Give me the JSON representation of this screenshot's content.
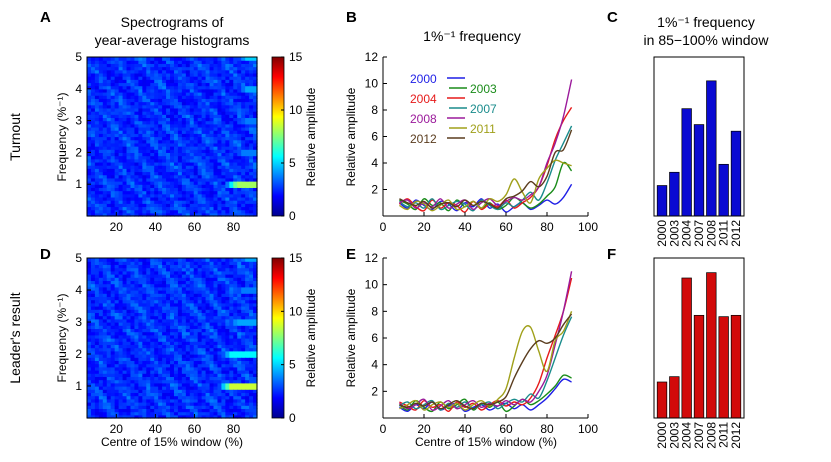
{
  "figure": {
    "panel_letters": [
      "A",
      "B",
      "C",
      "D",
      "E",
      "F"
    ],
    "row_labels": [
      "Turnout",
      "Leader's result"
    ],
    "col_a_title_lines": [
      "Spectrograms of",
      "year-average histograms"
    ],
    "col_b_title": "1%⁻¹ frequency",
    "col_c_title_lines": [
      "1%⁻¹ frequency",
      "in 85−100% window"
    ],
    "y_spec_label": "Frequency (%⁻¹)",
    "colorbar_label": "Relative amplitude",
    "y_line_label": "Relative amplitude",
    "x_label": "Centre of 15% window (%)"
  },
  "chart_data": [
    {
      "panel": "A",
      "type": "heatmap",
      "title": "Spectrograms of year-average histograms",
      "xlabel": "",
      "ylabel": "Frequency (%⁻¹)",
      "xticks": [
        20,
        40,
        60,
        80
      ],
      "yticks": [
        1,
        2,
        3,
        4,
        5
      ],
      "xlim": [
        5,
        92
      ],
      "ylim": [
        0,
        5
      ],
      "colorbar": {
        "label": "Relative amplitude",
        "ticks": [
          0,
          5,
          10,
          15
        ],
        "range": [
          0,
          15
        ],
        "colormap": "jet"
      },
      "bright_bands": [
        {
          "frequency": 1,
          "from_x": 75,
          "peak": 13
        },
        {
          "frequency": 2,
          "from_x": 78,
          "peak": 6
        },
        {
          "frequency": 3,
          "from_x": 80,
          "peak": 6
        },
        {
          "frequency": 4,
          "from_x": 80,
          "peak": 7
        },
        {
          "frequency": 5,
          "from_x": 80,
          "peak": 8
        }
      ]
    },
    {
      "panel": "B",
      "type": "line",
      "title": "1%⁻¹ frequency",
      "xlabel": "",
      "ylabel": "Relative amplitude",
      "xlim": [
        0,
        100
      ],
      "ylim": [
        0,
        12
      ],
      "xticks": [
        0,
        20,
        40,
        60,
        80,
        100
      ],
      "yticks": [
        2,
        4,
        6,
        8,
        10,
        12
      ],
      "x": [
        8,
        12,
        16,
        20,
        24,
        28,
        32,
        36,
        40,
        44,
        48,
        52,
        56,
        60,
        64,
        68,
        72,
        76,
        80,
        84,
        88,
        92
      ],
      "series": [
        {
          "name": "2000",
          "color": "#1f1fe6",
          "values": [
            1.0,
            0.6,
            1.2,
            0.8,
            0.5,
            1.1,
            0.9,
            0.4,
            1.0,
            0.7,
            1.3,
            0.6,
            0.9,
            0.3,
            0.7,
            1.0,
            0.5,
            0.8,
            1.2,
            0.9,
            1.4,
            2.4
          ]
        },
        {
          "name": "2003",
          "color": "#1a8c1a",
          "values": [
            1.2,
            0.9,
            0.5,
            1.3,
            0.8,
            1.0,
            0.4,
            1.2,
            0.7,
            1.1,
            0.6,
            1.0,
            0.5,
            0.8,
            1.4,
            1.0,
            0.6,
            0.9,
            1.5,
            2.2,
            4.0,
            3.4
          ]
        },
        {
          "name": "2004",
          "color": "#e61a1a",
          "values": [
            0.9,
            1.3,
            0.7,
            0.4,
            1.2,
            0.6,
            1.0,
            0.8,
            0.3,
            1.1,
            0.5,
            0.9,
            0.7,
            1.2,
            0.6,
            1.0,
            1.4,
            2.2,
            3.8,
            5.8,
            7.2,
            8.2
          ]
        },
        {
          "name": "2007",
          "color": "#1a8c8c",
          "values": [
            1.1,
            0.7,
            1.0,
            0.6,
            1.3,
            0.5,
            0.8,
            1.1,
            0.9,
            0.4,
            1.2,
            0.8,
            0.5,
            1.0,
            0.7,
            1.2,
            1.8,
            1.2,
            2.5,
            4.2,
            5.5,
            6.8
          ]
        },
        {
          "name": "2008",
          "color": "#9b1a9b",
          "values": [
            1.0,
            1.2,
            0.6,
            1.0,
            0.7,
            1.3,
            0.6,
            0.9,
            1.2,
            0.5,
            1.0,
            1.3,
            0.8,
            1.1,
            1.4,
            1.2,
            1.6,
            2.2,
            4.0,
            5.5,
            7.5,
            10.3
          ]
        },
        {
          "name": "2011",
          "color": "#a0a01a",
          "values": [
            0.8,
            0.5,
            1.1,
            0.9,
            0.4,
            0.8,
            1.2,
            0.5,
            0.7,
            1.1,
            0.6,
            1.3,
            1.1,
            1.6,
            2.8,
            1.8,
            1.0,
            2.8,
            3.6,
            4.2,
            4.0,
            3.8
          ]
        },
        {
          "name": "2012",
          "color": "#5a3c1e",
          "values": [
            1.3,
            1.0,
            0.8,
            1.1,
            0.6,
            0.9,
            1.0,
            0.7,
            1.2,
            0.8,
            1.1,
            0.9,
            0.6,
            1.3,
            1.5,
            1.9,
            2.6,
            2.2,
            3.0,
            4.8,
            5.0,
            6.5
          ]
        }
      ]
    },
    {
      "panel": "C",
      "type": "bar",
      "title": "1%⁻¹ frequency in 85−100% window",
      "categories": [
        "2000",
        "2003",
        "2004",
        "2007",
        "2008",
        "2011",
        "2012"
      ],
      "values": [
        2.3,
        3.3,
        8.1,
        6.9,
        10.2,
        3.9,
        6.4
      ],
      "ylim": [
        0,
        12
      ],
      "color": "#0a0ad2"
    },
    {
      "panel": "D",
      "type": "heatmap",
      "title": "",
      "xlabel": "Centre of 15% window (%)",
      "ylabel": "Frequency (%⁻¹)",
      "xticks": [
        20,
        40,
        60,
        80
      ],
      "yticks": [
        1,
        2,
        3,
        4,
        5
      ],
      "xlim": [
        5,
        92
      ],
      "ylim": [
        0,
        5
      ],
      "colorbar": {
        "label": "Relative amplitude",
        "ticks": [
          0,
          5,
          10,
          15
        ],
        "range": [
          0,
          15
        ],
        "colormap": "jet"
      },
      "bright_bands": [
        {
          "frequency": 1,
          "from_x": 72,
          "peak": 14
        },
        {
          "frequency": 2,
          "from_x": 72,
          "peak": 9
        },
        {
          "frequency": 3,
          "from_x": 75,
          "peak": 7
        },
        {
          "frequency": 4,
          "from_x": 78,
          "peak": 6
        },
        {
          "frequency": 5,
          "from_x": 80,
          "peak": 7
        }
      ]
    },
    {
      "panel": "E",
      "type": "line",
      "title": "",
      "xlabel": "Centre of 15% window (%)",
      "ylabel": "Relative amplitude",
      "xlim": [
        0,
        100
      ],
      "ylim": [
        0,
        12
      ],
      "xticks": [
        0,
        20,
        40,
        60,
        80,
        100
      ],
      "yticks": [
        2,
        4,
        6,
        8,
        10,
        12
      ],
      "x": [
        8,
        12,
        16,
        20,
        24,
        28,
        32,
        36,
        40,
        44,
        48,
        52,
        56,
        60,
        64,
        68,
        72,
        76,
        80,
        84,
        88,
        92
      ],
      "series": [
        {
          "name": "2000",
          "color": "#1f1fe6",
          "values": [
            0.8,
            0.5,
            1.0,
            0.7,
            1.2,
            0.6,
            0.9,
            1.1,
            0.5,
            0.8,
            1.0,
            0.6,
            0.9,
            1.1,
            0.7,
            1.0,
            0.6,
            1.0,
            1.5,
            2.2,
            2.9,
            2.7
          ]
        },
        {
          "name": "2003",
          "color": "#1a8c1a",
          "values": [
            1.0,
            0.6,
            1.3,
            0.8,
            0.5,
            1.2,
            0.7,
            1.0,
            1.4,
            0.6,
            1.1,
            0.8,
            1.2,
            0.5,
            0.9,
            1.4,
            1.0,
            1.3,
            1.8,
            2.4,
            3.2,
            3.0
          ]
        },
        {
          "name": "2004",
          "color": "#e61a1a",
          "values": [
            1.2,
            0.9,
            0.6,
            1.3,
            0.8,
            1.0,
            0.5,
            1.2,
            0.8,
            1.1,
            0.6,
            1.0,
            1.3,
            0.9,
            1.2,
            1.0,
            1.5,
            2.6,
            4.5,
            6.2,
            8.0,
            10.5
          ]
        },
        {
          "name": "2007",
          "color": "#1a8c8c",
          "values": [
            0.9,
            1.2,
            0.7,
            1.0,
            1.3,
            0.6,
            1.1,
            0.8,
            1.2,
            0.7,
            1.0,
            1.2,
            0.7,
            1.1,
            1.4,
            1.2,
            1.8,
            1.5,
            2.8,
            4.5,
            6.2,
            7.6
          ]
        },
        {
          "name": "2008",
          "color": "#9b1a9b",
          "values": [
            1.1,
            0.7,
            1.0,
            1.4,
            0.6,
            0.9,
            1.3,
            0.7,
            1.0,
            1.3,
            0.8,
            1.1,
            0.9,
            1.3,
            1.0,
            1.4,
            1.2,
            2.0,
            3.2,
            5.5,
            8.0,
            11.0
          ]
        },
        {
          "name": "2011",
          "color": "#a0a01a",
          "values": [
            0.7,
            1.0,
            1.3,
            0.6,
            1.0,
            1.2,
            0.8,
            1.1,
            0.6,
            1.0,
            1.3,
            0.9,
            1.4,
            2.2,
            4.5,
            6.5,
            6.8,
            5.0,
            3.5,
            5.8,
            6.5,
            8.0
          ]
        },
        {
          "name": "2012",
          "color": "#5a3c1e",
          "values": [
            1.0,
            0.8,
            1.1,
            0.9,
            1.2,
            0.7,
            1.0,
            1.3,
            0.9,
            0.7,
            1.1,
            1.0,
            1.2,
            1.6,
            3.0,
            4.2,
            5.2,
            5.8,
            5.6,
            6.0,
            7.0,
            7.8
          ]
        }
      ]
    },
    {
      "panel": "F",
      "type": "bar",
      "title": "",
      "categories": [
        "2000",
        "2003",
        "2004",
        "2007",
        "2008",
        "2011",
        "2012"
      ],
      "values": [
        2.7,
        3.1,
        10.5,
        7.7,
        10.9,
        7.6,
        7.7
      ],
      "ylim": [
        0,
        12
      ],
      "color": "#d20a0a"
    }
  ]
}
